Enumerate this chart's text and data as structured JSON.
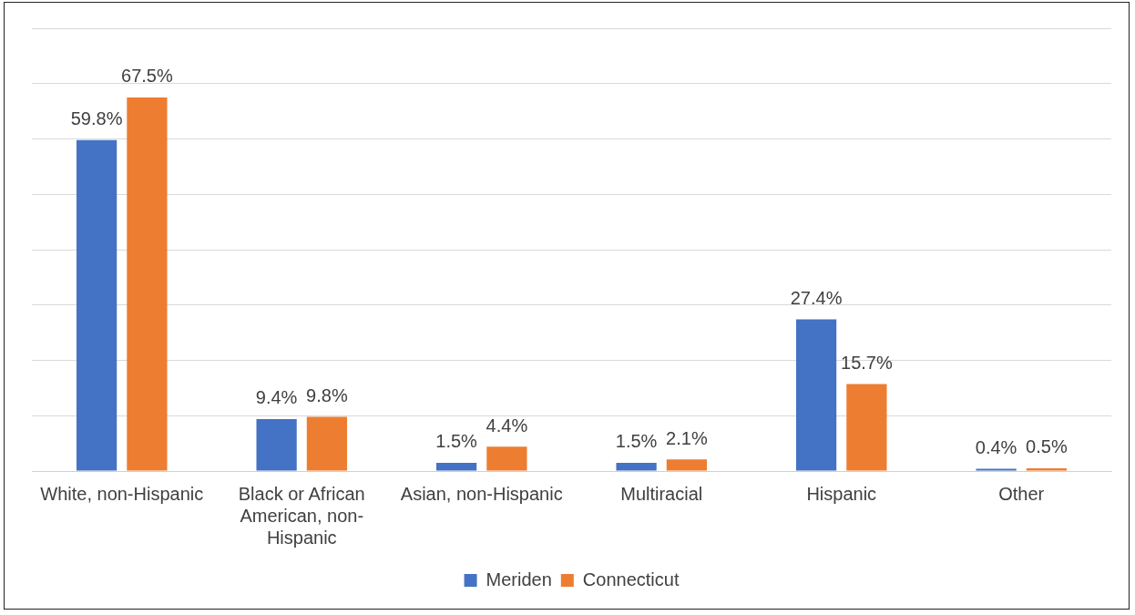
{
  "chart_data": {
    "type": "bar",
    "categories": [
      "White, non-Hispanic",
      "Black or African American, non-Hispanic",
      "Asian, non-Hispanic",
      "Multiracial",
      "Hispanic",
      "Other"
    ],
    "series": [
      {
        "name": "Meriden",
        "color": "#4472c4",
        "values": [
          59.8,
          9.4,
          1.5,
          1.5,
          27.4,
          0.4
        ],
        "value_labels": [
          "59.8%",
          "9.4%",
          "1.5%",
          "1.5%",
          "27.4%",
          "0.4%"
        ]
      },
      {
        "name": "Connecticut",
        "color": "#ed7d31",
        "values": [
          67.5,
          9.8,
          4.4,
          2.1,
          15.7,
          0.5
        ],
        "value_labels": [
          "67.5%",
          "9.8%",
          "4.4%",
          "2.1%",
          "15.7%",
          "0.5%"
        ]
      }
    ],
    "ylim": [
      0,
      80
    ],
    "yticks": [
      {
        "value": 0,
        "label": null
      },
      {
        "value": 10,
        "label": null
      },
      {
        "value": 20,
        "label": null
      },
      {
        "value": 30,
        "label": null
      },
      {
        "value": 40,
        "label": null
      },
      {
        "value": 50,
        "label": null
      },
      {
        "value": 60,
        "label": null
      },
      {
        "value": 70,
        "label": null
      },
      {
        "value": 80,
        "label": null
      }
    ],
    "tick_labels": "x",
    "grid": "y",
    "legend": "bottom"
  }
}
